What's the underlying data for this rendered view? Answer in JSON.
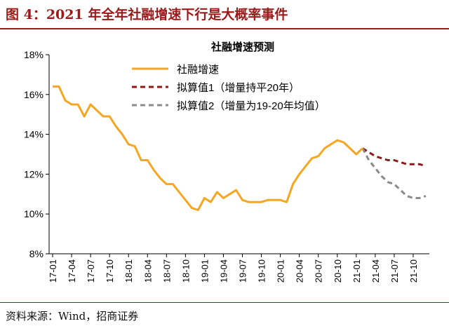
{
  "figure": {
    "title": "图 4：2021 年全年社融增速下行是大概率事件",
    "source": "资料来源：Wind，招商证券"
  },
  "colors": {
    "title_red": "#9b1a1a",
    "actual": "#f5a623",
    "plan1": "#8b1a1a",
    "plan2": "#8a8a8a"
  },
  "chart_data": {
    "type": "line",
    "title": "社融增速预测",
    "xlabel": "",
    "ylabel": "",
    "ylim": [
      8,
      18
    ],
    "yticks": [
      "8%",
      "10%",
      "12%",
      "14%",
      "16%",
      "18%"
    ],
    "xticks": [
      "17-01",
      "17-04",
      "17-07",
      "17-10",
      "18-01",
      "18-04",
      "18-07",
      "18-10",
      "19-01",
      "19-04",
      "19-07",
      "19-10",
      "20-01",
      "20-04",
      "20-07",
      "20-10",
      "21-01",
      "21-04",
      "21-07",
      "21-10"
    ],
    "x_start": "17-01",
    "x_end": "21-12",
    "grid": false,
    "legend_position": "top-right",
    "series": [
      {
        "name": "社融增速",
        "style": "solid",
        "color": "#f5a623",
        "x": [
          "17-01",
          "17-02",
          "17-03",
          "17-04",
          "17-05",
          "17-06",
          "17-07",
          "17-08",
          "17-09",
          "17-10",
          "17-11",
          "17-12",
          "18-01",
          "18-02",
          "18-03",
          "18-04",
          "18-05",
          "18-06",
          "18-07",
          "18-08",
          "18-09",
          "18-10",
          "18-11",
          "18-12",
          "19-01",
          "19-02",
          "19-03",
          "19-04",
          "19-05",
          "19-06",
          "19-07",
          "19-08",
          "19-09",
          "19-10",
          "19-11",
          "19-12",
          "20-01",
          "20-02",
          "20-03",
          "20-04",
          "20-05",
          "20-06",
          "20-07",
          "20-08",
          "20-09",
          "20-10",
          "20-11",
          "20-12",
          "21-01",
          "21-02"
        ],
        "values": [
          16.4,
          16.4,
          15.7,
          15.5,
          15.5,
          14.9,
          15.5,
          15.2,
          14.9,
          14.9,
          14.4,
          14.0,
          13.5,
          13.4,
          12.7,
          12.7,
          12.2,
          11.8,
          11.5,
          11.5,
          11.1,
          10.7,
          10.3,
          10.2,
          10.8,
          10.6,
          11.1,
          10.8,
          11.0,
          11.2,
          10.7,
          10.6,
          10.6,
          10.6,
          10.7,
          10.7,
          10.7,
          10.6,
          11.5,
          12.0,
          12.4,
          12.8,
          12.9,
          13.3,
          13.5,
          13.7,
          13.6,
          13.3,
          13.0,
          13.3
        ]
      },
      {
        "name": "拟算值1（增量持平20年）",
        "style": "dashed",
        "color": "#8b1a1a",
        "x": [
          "21-02",
          "21-03",
          "21-04",
          "21-05",
          "21-06",
          "21-07",
          "21-08",
          "21-09",
          "21-10",
          "21-11",
          "21-12"
        ],
        "values": [
          13.3,
          13.1,
          12.9,
          12.8,
          12.7,
          12.7,
          12.6,
          12.5,
          12.5,
          12.5,
          12.4
        ]
      },
      {
        "name": "拟算值2（增量为19-20年均值）",
        "style": "dashed",
        "color": "#8a8a8a",
        "x": [
          "21-02",
          "21-03",
          "21-04",
          "21-05",
          "21-06",
          "21-07",
          "21-08",
          "21-09",
          "21-10",
          "21-11",
          "21-12"
        ],
        "values": [
          13.3,
          12.7,
          12.3,
          11.9,
          11.6,
          11.5,
          11.2,
          10.9,
          10.8,
          10.8,
          10.9
        ]
      }
    ]
  }
}
